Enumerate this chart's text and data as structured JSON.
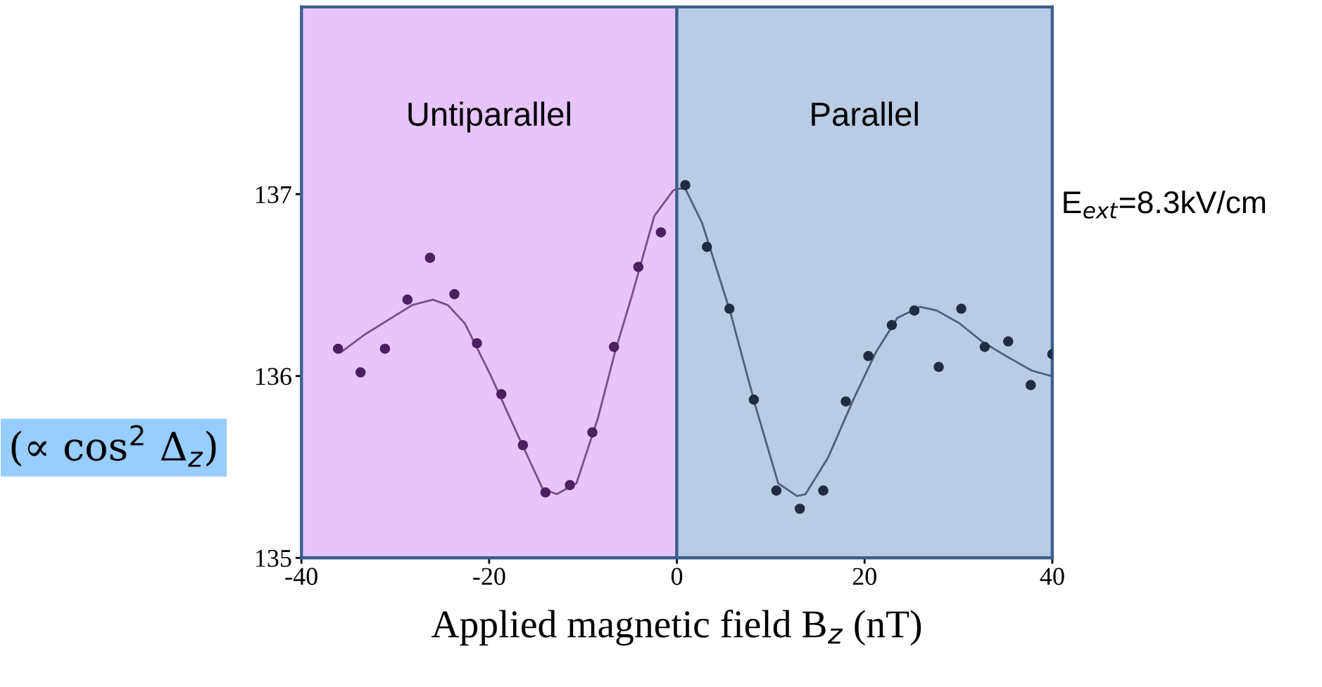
{
  "chart_data": {
    "type": "scatter",
    "xlabel": "Applied magnetic field B$_{z}$ (nT)",
    "ylabel": "(∝ cos$^{2}$ Δ$_{z}$)",
    "annotations": [
      "E$_{ext}$=8.3kV/cm"
    ],
    "xlim": [
      -40,
      40
    ],
    "xticks": [
      -40,
      -20,
      0,
      20,
      40
    ],
    "ylim": [
      135,
      138.03
    ],
    "yticks": [
      135,
      136,
      137
    ],
    "grid": false,
    "legend": false,
    "marker": "circle",
    "bands": [
      {
        "axis": "x",
        "from": -40,
        "to": 0,
        "label": "Untiparallel",
        "color": "#e8c4fc"
      },
      {
        "axis": "x",
        "from": 0,
        "to": 40,
        "label": "Parallel",
        "color": "#b8cce4"
      }
    ],
    "series": [
      {
        "color": "#4a2060",
        "x": [
          -36.1,
          -33.7,
          -31.1,
          -28.7,
          -26.3,
          -23.7,
          -21.3,
          -18.7,
          -16.4,
          -14.0,
          -11.4,
          -9.0,
          -6.7,
          -4.1,
          -1.7
        ],
        "values": [
          136.15,
          136.02,
          136.15,
          136.42,
          136.65,
          136.45,
          136.18,
          135.9,
          135.62,
          135.36,
          135.4,
          135.69,
          136.16,
          136.6,
          136.79
        ]
      },
      {
        "color": "#1f2d44",
        "x": [
          0.9,
          3.2,
          5.6,
          8.2,
          10.6,
          13.1,
          15.6,
          18.0,
          20.4,
          22.9,
          25.3,
          27.9,
          30.3,
          32.8,
          35.3,
          37.7,
          40.0
        ],
        "values": [
          137.05,
          136.71,
          136.37,
          135.87,
          135.37,
          135.27,
          135.37,
          135.86,
          136.11,
          136.28,
          136.36,
          136.05,
          136.37,
          136.16,
          136.19,
          135.95,
          136.12
        ]
      },
      {
        "type": "line",
        "color": "#7a4e8a",
        "marker": "none",
        "x": [
          -35.8,
          -33.2,
          -28.2,
          -26.0,
          -24.4,
          -22.6,
          -19.9,
          -16.9,
          -14.3,
          -12.8,
          -10.7,
          -8.4,
          -6.6,
          -4.8,
          -2.4,
          -0.4,
          0.0
        ],
        "values": [
          136.13,
          136.23,
          136.39,
          136.42,
          136.39,
          136.29,
          136.01,
          135.67,
          135.38,
          135.35,
          135.41,
          135.77,
          136.13,
          136.44,
          136.88,
          137.02,
          137.03
        ]
      },
      {
        "type": "line",
        "color": "#4f5f78",
        "marker": "none",
        "x": [
          0.0,
          0.9,
          2.7,
          5.7,
          8.4,
          10.8,
          12.8,
          13.7,
          16.1,
          18.8,
          21.2,
          23.5,
          25.9,
          27.7,
          30.1,
          32.5,
          35.4,
          37.8,
          39.9
        ],
        "values": [
          137.03,
          137.03,
          136.84,
          136.35,
          135.83,
          135.41,
          135.34,
          135.35,
          135.55,
          135.87,
          136.13,
          136.32,
          136.38,
          136.36,
          136.29,
          136.19,
          136.1,
          136.03,
          136.0
        ]
      }
    ]
  }
}
